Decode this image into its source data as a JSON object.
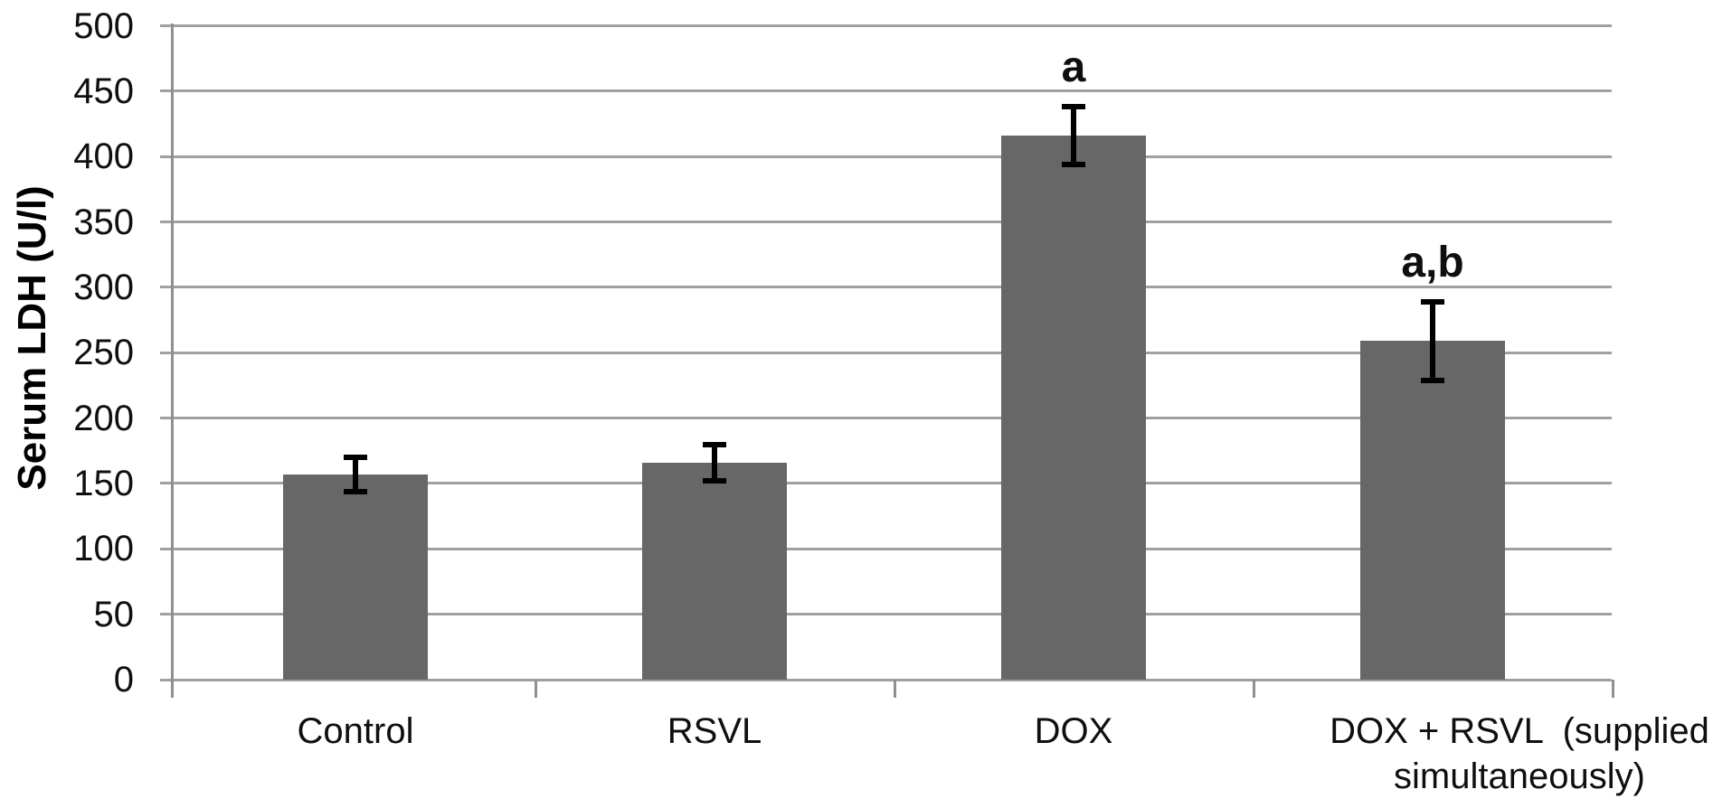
{
  "chart_data": {
    "type": "bar",
    "title": "",
    "ylabel": "Serum LDH (U/l)",
    "xlabel": "",
    "categories": [
      "Control",
      "RSVL",
      "DOX",
      "DOX + RSVL  (supplied\nsimultaneously)"
    ],
    "values": [
      157,
      166,
      416,
      259
    ],
    "error_bars": [
      13,
      14,
      22,
      30
    ],
    "significance_labels": [
      "",
      "",
      "a",
      "a,b"
    ],
    "ylim": [
      0,
      500
    ],
    "ytick_step": 50,
    "ytick_labels": [
      "0",
      "50",
      "100",
      "150",
      "200",
      "250",
      "300",
      "350",
      "400",
      "450",
      "500"
    ],
    "grid": "horizontal-only",
    "legend": "none",
    "colors": {
      "bar_fill": "#676767",
      "gridline": "#a0a0a0",
      "axis_line": "#8f8f8f",
      "error_bar": "#000000",
      "text": "#0f0f0f"
    }
  }
}
